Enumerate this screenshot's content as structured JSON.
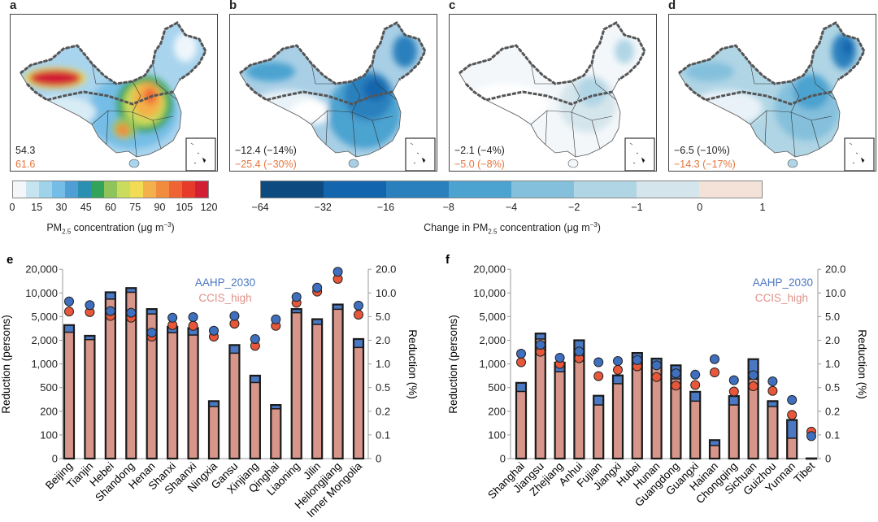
{
  "maps": [
    {
      "label": "a",
      "line1": "54.3",
      "line2": "61.6",
      "theme": "conc"
    },
    {
      "label": "b",
      "line1": "−12.4 (−14%)",
      "line2": "−25.4 (−30%)",
      "theme": "b"
    },
    {
      "label": "c",
      "line1": "−2.1 (−4%)",
      "line2": "−5.0 (−8%)",
      "theme": "c"
    },
    {
      "label": "d",
      "line1": "−6.5 (−10%)",
      "line2": "−14.3 (−17%)",
      "theme": "d"
    }
  ],
  "colorbar_conc": {
    "ticks": [
      "0",
      "15",
      "30",
      "45",
      "60",
      "75",
      "90",
      "105",
      "120"
    ],
    "title_pre": "PM",
    "title_sub": "2.5",
    "title_mid": " concentration (μg m",
    "title_sup": "−3",
    "title_post": ")",
    "colors": [
      "#f4f6fa",
      "#c6e4ef",
      "#9fd3ea",
      "#74bde6",
      "#4f9fd5",
      "#2a8fb0",
      "#33a35a",
      "#8fc45a",
      "#c9dc5d",
      "#f2dc55",
      "#f4b04a",
      "#f18c3e",
      "#ee6434",
      "#e83a2a",
      "#d21f34"
    ]
  },
  "colorbar_change": {
    "ticks": [
      "−64",
      "−32",
      "−16",
      "−8",
      "−4",
      "−2",
      "−1",
      "0",
      "1"
    ],
    "title_pre": "Change in PM",
    "title_sub": "2.5",
    "title_mid": " concentration (μg m",
    "title_sup": "−3",
    "title_post": ")",
    "colors": [
      "#0d4a80",
      "#1366ae",
      "#2a80bd",
      "#4ca3d0",
      "#84c0dc",
      "#b0d5e5",
      "#d5e5ec",
      "#f4e2d8"
    ]
  },
  "colors": {
    "aahp": "#4a78c2",
    "ccis": "#d8968a",
    "ccis_dot": "#e8573a",
    "aahp_dot": "#3f6fbf",
    "ccis_text": "#e0928a"
  },
  "chart_data": [
    {
      "type": "bar",
      "panel": "e",
      "ylabel": "Reduction (persons)",
      "y2label": "Reduction (%)",
      "yticks": [
        "0",
        "100",
        "200",
        "500",
        "1,000",
        "2,000",
        "5,000",
        "10,000",
        "20,000"
      ],
      "y2ticks": [
        "0",
        "0.1",
        "0.2",
        "0.5",
        "1.0",
        "2.0",
        "5.0",
        "10.0",
        "20.0"
      ],
      "legend": [
        "AAHP_2030",
        "CCIS_high"
      ],
      "categories": [
        "Beijing",
        "Tianjin",
        "Hebei",
        "Shandong",
        "Henan",
        "Shanxi",
        "Shaanxi",
        "Ningxia",
        "Gansu",
        "Xinjiang",
        "Qinghai",
        "Liaoning",
        "Jilin",
        "Heilongjiang",
        "Inner Mongolia"
      ],
      "series": [
        {
          "name": "AAHP_2030 reduction (persons)",
          "values": [
            3600,
            2380,
            10200,
            11550,
            6240,
            3370,
            3200,
            296,
            1740,
            710,
            255,
            6240,
            4530,
            7130,
            2100
          ]
        },
        {
          "name": "CCIS_high reduction (persons)",
          "values": [
            2730,
            2050,
            8350,
            10200,
            5400,
            2680,
            2450,
            240,
            1370,
            580,
            220,
            5600,
            3700,
            6200,
            1620
          ]
        },
        {
          "name": "AAHP_2030 reduction (%)",
          "values": [
            7.8,
            7.0,
            5.9,
            5.6,
            2.7,
            4.8,
            4.9,
            2.9,
            5.1,
            2.1,
            4.5,
            8.9,
            11.7,
            18.6,
            6.9
          ]
        },
        {
          "name": "CCIS_high reduction (%)",
          "values": [
            5.8,
            5.7,
            5.1,
            4.8,
            2.3,
            3.6,
            3.5,
            2.3,
            3.8,
            1.7,
            3.5,
            7.5,
            10.4,
            15.1,
            5.3
          ]
        }
      ]
    },
    {
      "type": "bar",
      "panel": "f",
      "ylabel": "Reduction (persons)",
      "y2label": "Reduction (%)",
      "yticks": [
        "0",
        "100",
        "200",
        "500",
        "1,000",
        "2,000",
        "5,000",
        "10,000",
        "20,000"
      ],
      "y2ticks": [
        "0",
        "0.1",
        "0.2",
        "0.5",
        "1.0",
        "2.0",
        "5.0",
        "10.0",
        "20.0"
      ],
      "legend": [
        "AAHP_2030",
        "CCIS_high"
      ],
      "categories": [
        "Shanghai",
        "Jiangsu",
        "Zhejiang",
        "Anhui",
        "Fujian",
        "Jiangxi",
        "Hubei",
        "Hunan",
        "Guangdong",
        "Guangxi",
        "Hainan",
        "Chongqing",
        "Sichuan",
        "Guizhou",
        "Yunnan",
        "Tibet"
      ],
      "series": [
        {
          "name": "AAHP_2030 reduction (persons)",
          "values": [
            575,
            2600,
            1040,
            2000,
            365,
            715,
            1380,
            1170,
            960,
            425,
            78,
            360,
            1150,
            296,
            155,
            1
          ]
        },
        {
          "name": "CCIS_high reduction (persons)",
          "values": [
            430,
            2100,
            795,
            1090,
            255,
            560,
            1125,
            890,
            645,
            296,
            55,
            255,
            640,
            240,
            86,
            0
          ]
        },
        {
          "name": "AAHP_2030 reduction (%)",
          "values": [
            1.35,
            1.75,
            1.2,
            1.44,
            1.05,
            1.09,
            1.12,
            0.96,
            0.76,
            0.73,
            1.15,
            0.62,
            0.72,
            0.6,
            0.31,
            0.095
          ]
        },
        {
          "name": "CCIS_high reduction (%)",
          "values": [
            1.05,
            1.43,
            1.0,
            1.18,
            0.7,
            0.84,
            0.93,
            0.68,
            0.53,
            0.54,
            0.78,
            0.43,
            0.52,
            0.44,
            0.18,
            0.11
          ]
        }
      ]
    }
  ]
}
